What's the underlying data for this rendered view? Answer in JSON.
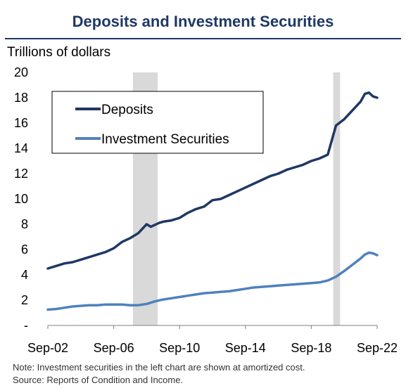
{
  "chart_data": {
    "type": "line",
    "title": "Deposits and Investment Securities",
    "ylabel": "Trillions of dollars",
    "xlabel": "",
    "ylim": [
      0,
      20
    ],
    "y_ticks": [
      "-",
      "2",
      "4",
      "6",
      "8",
      "10",
      "12",
      "14",
      "16",
      "18",
      "20"
    ],
    "y_tick_values": [
      0,
      2,
      4,
      6,
      8,
      10,
      12,
      14,
      16,
      18,
      20
    ],
    "x_ticks": [
      "Sep-02",
      "Sep-06",
      "Sep-10",
      "Sep-14",
      "Sep-18",
      "Sep-22"
    ],
    "x_tick_values": [
      2002.75,
      2006.75,
      2010.75,
      2014.75,
      2018.75,
      2022.75
    ],
    "xlim": [
      2002.75,
      2022.75
    ],
    "recessions": [
      [
        2007.917,
        2009.417
      ],
      [
        2020.083,
        2020.5
      ]
    ],
    "recession_color": "#D9D9D9",
    "grid": false,
    "legend_placement": "top-left",
    "series": [
      {
        "name": "Deposits",
        "color": "#1F3864",
        "points": [
          [
            2002.75,
            4.5
          ],
          [
            2003.25,
            4.7
          ],
          [
            2003.75,
            4.9
          ],
          [
            2004.25,
            5.0
          ],
          [
            2004.75,
            5.2
          ],
          [
            2005.25,
            5.4
          ],
          [
            2005.75,
            5.6
          ],
          [
            2006.25,
            5.8
          ],
          [
            2006.75,
            6.1
          ],
          [
            2007.25,
            6.6
          ],
          [
            2007.75,
            6.9
          ],
          [
            2008.25,
            7.3
          ],
          [
            2008.75,
            8.0
          ],
          [
            2009.0,
            7.8
          ],
          [
            2009.5,
            8.1
          ],
          [
            2009.75,
            8.2
          ],
          [
            2010.25,
            8.3
          ],
          [
            2010.75,
            8.5
          ],
          [
            2011.25,
            8.9
          ],
          [
            2011.75,
            9.2
          ],
          [
            2012.25,
            9.4
          ],
          [
            2012.75,
            9.9
          ],
          [
            2013.25,
            10.0
          ],
          [
            2013.75,
            10.3
          ],
          [
            2014.25,
            10.6
          ],
          [
            2014.75,
            10.9
          ],
          [
            2015.25,
            11.2
          ],
          [
            2015.75,
            11.5
          ],
          [
            2016.25,
            11.8
          ],
          [
            2016.75,
            12.0
          ],
          [
            2017.25,
            12.3
          ],
          [
            2017.75,
            12.5
          ],
          [
            2018.25,
            12.7
          ],
          [
            2018.75,
            13.0
          ],
          [
            2019.25,
            13.2
          ],
          [
            2019.75,
            13.5
          ],
          [
            2020.25,
            15.8
          ],
          [
            2020.75,
            16.3
          ],
          [
            2021.25,
            17.0
          ],
          [
            2021.75,
            17.7
          ],
          [
            2022.0,
            18.3
          ],
          [
            2022.25,
            18.4
          ],
          [
            2022.5,
            18.1
          ],
          [
            2022.75,
            18.0
          ]
        ]
      },
      {
        "name": "Investment Securities",
        "color": "#4F81BD",
        "points": [
          [
            2002.75,
            1.25
          ],
          [
            2003.25,
            1.3
          ],
          [
            2003.75,
            1.4
          ],
          [
            2004.25,
            1.5
          ],
          [
            2004.75,
            1.55
          ],
          [
            2005.25,
            1.6
          ],
          [
            2005.75,
            1.6
          ],
          [
            2006.25,
            1.65
          ],
          [
            2006.75,
            1.65
          ],
          [
            2007.25,
            1.65
          ],
          [
            2007.75,
            1.6
          ],
          [
            2008.25,
            1.6
          ],
          [
            2008.75,
            1.7
          ],
          [
            2009.25,
            1.9
          ],
          [
            2009.75,
            2.05
          ],
          [
            2010.25,
            2.15
          ],
          [
            2010.75,
            2.25
          ],
          [
            2011.25,
            2.35
          ],
          [
            2011.75,
            2.45
          ],
          [
            2012.25,
            2.55
          ],
          [
            2012.75,
            2.6
          ],
          [
            2013.25,
            2.65
          ],
          [
            2013.75,
            2.7
          ],
          [
            2014.25,
            2.8
          ],
          [
            2014.75,
            2.9
          ],
          [
            2015.25,
            3.0
          ],
          [
            2015.75,
            3.05
          ],
          [
            2016.25,
            3.1
          ],
          [
            2016.75,
            3.15
          ],
          [
            2017.25,
            3.2
          ],
          [
            2017.75,
            3.25
          ],
          [
            2018.25,
            3.3
          ],
          [
            2018.75,
            3.35
          ],
          [
            2019.25,
            3.4
          ],
          [
            2019.75,
            3.55
          ],
          [
            2020.25,
            3.85
          ],
          [
            2020.75,
            4.3
          ],
          [
            2021.25,
            4.8
          ],
          [
            2021.75,
            5.3
          ],
          [
            2022.0,
            5.6
          ],
          [
            2022.25,
            5.75
          ],
          [
            2022.5,
            5.7
          ],
          [
            2022.75,
            5.55
          ]
        ]
      }
    ]
  },
  "footer": {
    "note": "Note: Investment securities in the left chart are shown at amortized cost.",
    "source": "Source: Reports of Condition and Income."
  }
}
